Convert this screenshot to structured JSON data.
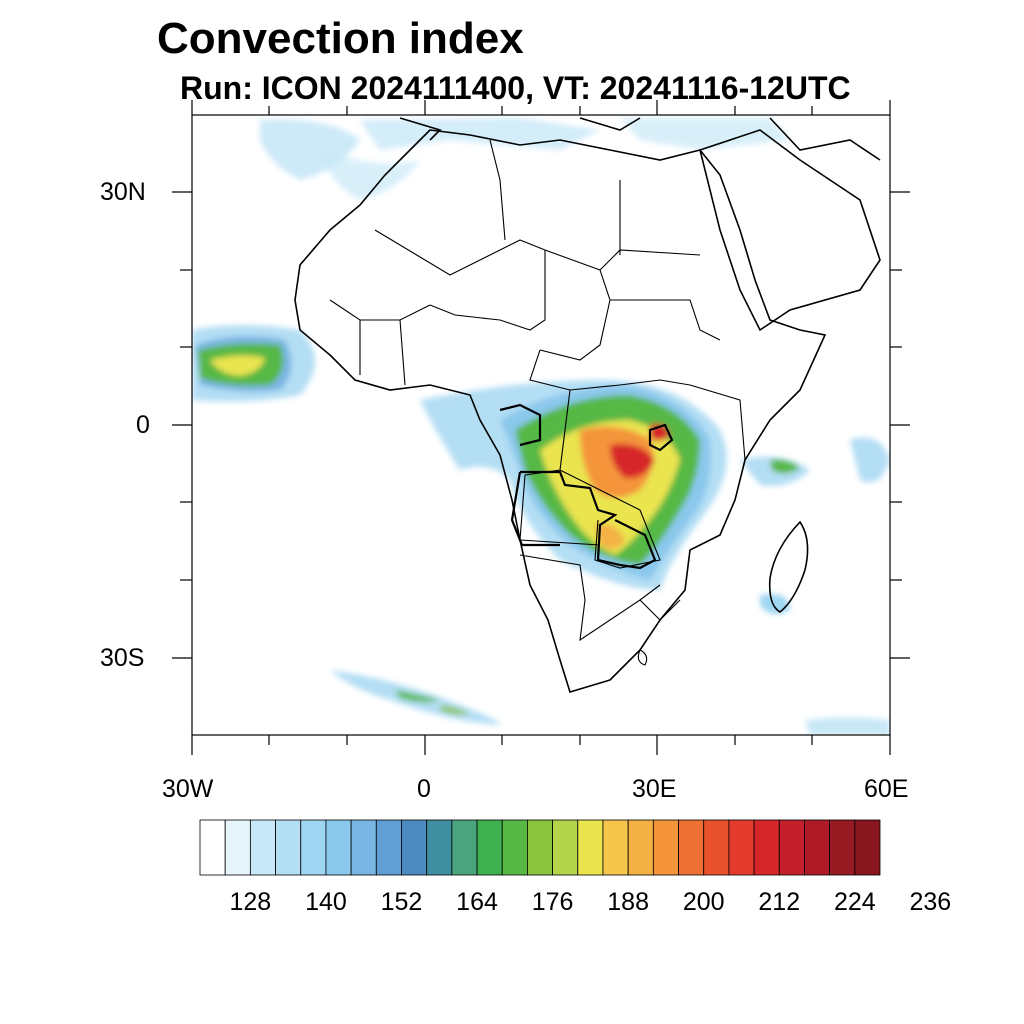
{
  "title": "Convection index",
  "subtitle": "Run: ICON 2024111400,  VT: 20241116-12UTC",
  "axes": {
    "lon_labels": [
      "30W",
      "0",
      "30E",
      "60E"
    ],
    "lat_labels": [
      "30N",
      "0",
      "30S"
    ]
  },
  "colorbar": {
    "labels": [
      "128",
      "140",
      "152",
      "164",
      "176",
      "188",
      "200",
      "212",
      "224",
      "236"
    ],
    "colors": [
      "#ffffff",
      "#e6f4fb",
      "#c8e8f7",
      "#b4def4",
      "#9fd6f2",
      "#8ac8ec",
      "#7ab6e3",
      "#5f9fd3",
      "#4b8bbf",
      "#3f8fa0",
      "#4aa47e",
      "#3fb050",
      "#57b845",
      "#8cc43f",
      "#b4d44a",
      "#eae44f",
      "#f6c64c",
      "#f4b244",
      "#f4943a",
      "#ef7033",
      "#e8532e",
      "#e33b2c",
      "#d7262a",
      "#c41f2a",
      "#ae1b26",
      "#981a23",
      "#87161f"
    ]
  },
  "map_colors": {
    "light_blue": "#c8e8f7",
    "mid_blue": "#8ac8ec",
    "teal": "#3f8fa0",
    "green": "#3fb050",
    "yellow": "#eae44f",
    "orange": "#f4943a",
    "red": "#d7262a"
  }
}
